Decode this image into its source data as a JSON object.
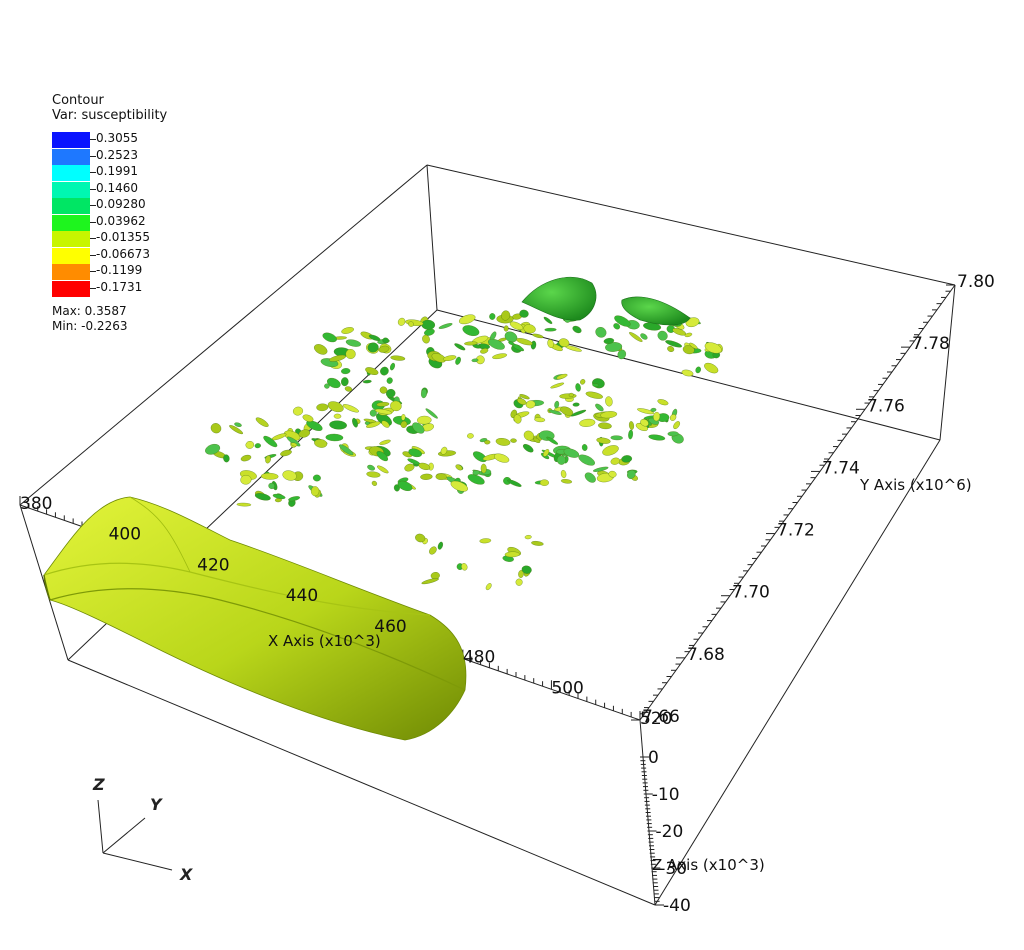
{
  "legend": {
    "title": "Contour",
    "variable": "Var: susceptibility",
    "levels": [
      {
        "label": "0.3055",
        "color": "#0a14ff"
      },
      {
        "label": "0.2523",
        "color": "#1e78ff"
      },
      {
        "label": "0.1991",
        "color": "#00ffff"
      },
      {
        "label": "0.1460",
        "color": "#00f7b2"
      },
      {
        "label": "0.09280",
        "color": "#00e664"
      },
      {
        "label": "0.03962",
        "color": "#1ef51e"
      },
      {
        "label": "-0.01355",
        "color": "#c8f500"
      },
      {
        "label": "-0.06673",
        "color": "#ffff00"
      },
      {
        "label": "-0.1199",
        "color": "#ff8c00"
      },
      {
        "label": "-0.1731",
        "color": "#ff0000"
      }
    ],
    "max_label": "Max:  0.3587",
    "min_label": "Min: -0.2263"
  },
  "axes": {
    "x": {
      "label": "X Axis (x10^3)",
      "ticks": [
        "380",
        "400",
        "420",
        "440",
        "460",
        "480",
        "500",
        "520"
      ]
    },
    "y": {
      "label": "Y Axis (x10^6)",
      "ticks": [
        "7.66",
        "7.68",
        "7.70",
        "7.72",
        "7.74",
        "7.76",
        "7.78",
        "7.80"
      ]
    },
    "z": {
      "label": "Z Axis (x10^3)",
      "ticks": [
        "0",
        "-10",
        "-20",
        "-30",
        "-40"
      ]
    }
  },
  "triad": {
    "x": "X",
    "y": "Y",
    "z": "Z"
  },
  "colors": {
    "surface_light": "#d6ef2a",
    "surface_dark": "#7d9a06",
    "blob_green": "#2eb02e",
    "blob_yellow": "#c9e02a"
  }
}
